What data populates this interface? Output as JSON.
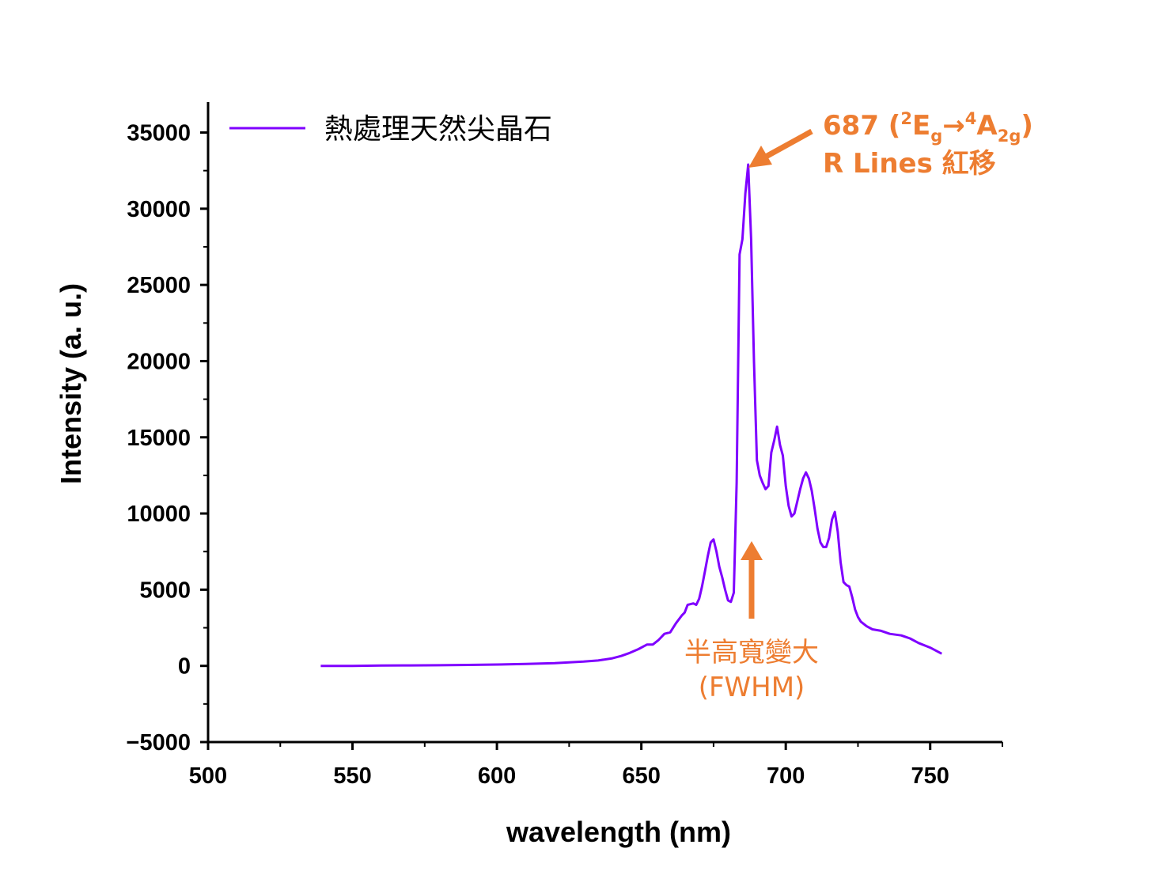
{
  "chart_data": {
    "type": "line",
    "xlabel": "wavelength (nm)",
    "ylabel": "Intensity (a. u.)",
    "xlim": [
      500,
      775
    ],
    "ylim": [
      -5000,
      37000
    ],
    "x_ticks": [
      "500",
      "550",
      "600",
      "650",
      "700",
      "750"
    ],
    "y_ticks": [
      "−5000",
      "0",
      "5000",
      "10000",
      "15000",
      "20000",
      "25000",
      "30000",
      "35000"
    ],
    "grid": false,
    "legend_position": "top-left",
    "series": [
      {
        "name": "熱處理天然尖晶石",
        "color": "#7F00FF",
        "x": [
          539,
          550,
          560,
          570,
          580,
          590,
          600,
          610,
          620,
          630,
          635,
          640,
          643,
          646,
          649,
          652,
          654,
          656,
          658,
          660,
          662,
          664,
          665,
          666,
          668,
          669,
          670,
          671,
          672,
          673,
          674,
          675,
          676,
          677,
          678,
          679,
          680,
          681,
          682,
          683,
          684,
          685,
          686,
          687,
          688,
          689,
          690,
          691,
          692,
          693,
          694,
          695,
          696,
          697,
          698,
          699,
          700,
          701,
          702,
          703,
          704,
          705,
          706,
          707,
          708,
          709,
          710,
          711,
          712,
          713,
          714,
          715,
          716,
          717,
          718,
          719,
          720,
          721,
          722,
          723,
          724,
          725,
          726,
          728,
          730,
          733,
          736,
          740,
          743,
          746,
          750,
          754
        ],
        "y": [
          0,
          0,
          20,
          30,
          40,
          60,
          90,
          130,
          180,
          280,
          350,
          500,
          650,
          850,
          1100,
          1400,
          1400,
          1700,
          2100,
          2200,
          2800,
          3300,
          3500,
          4000,
          4100,
          4000,
          4400,
          5200,
          6200,
          7200,
          8100,
          8300,
          7500,
          6500,
          5800,
          5000,
          4300,
          4200,
          4800,
          12000,
          27000,
          28000,
          31000,
          32900,
          28000,
          20000,
          13500,
          12500,
          12000,
          11600,
          11800,
          14000,
          14800,
          15700,
          14500,
          13800,
          11800,
          10500,
          9800,
          10000,
          10800,
          11600,
          12300,
          12700,
          12300,
          11500,
          10300,
          9000,
          8100,
          7800,
          7800,
          8400,
          9600,
          10100,
          8800,
          6800,
          5500,
          5300,
          5200,
          4500,
          3700,
          3200,
          2900,
          2600,
          2400,
          2300,
          2100,
          2000,
          1800,
          1500,
          1200,
          800
        ]
      }
    ],
    "annotations": {
      "peak_line1": {
        "prefix": "687  (",
        "sup1": "2",
        "e": "E",
        "sub1": "g",
        "arrow": "→",
        "sup2": "4",
        "a": "A",
        "sub2": "2g",
        "suffix": ")"
      },
      "peak_line2": "R Lines 紅移",
      "fwhm_line1": "半高寬變大",
      "fwhm_line2": "(FWHM)"
    }
  }
}
